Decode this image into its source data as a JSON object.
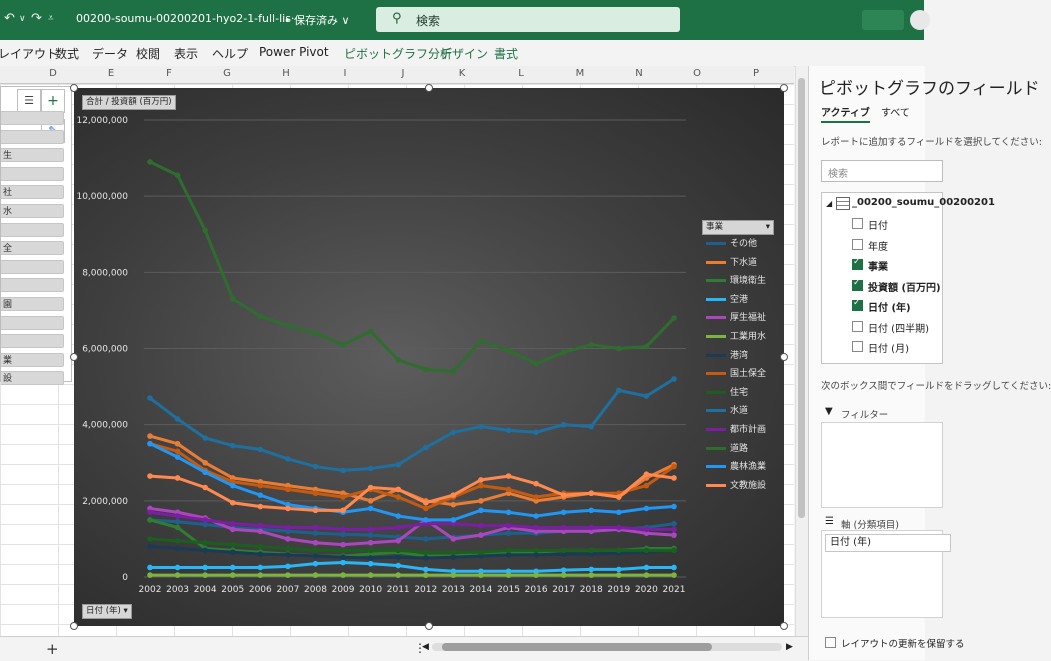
{
  "titlebar": {
    "doc_title": "00200-soumu-00200201-hyo2-1-full-lis···",
    "saved": "• 保存済み ∨",
    "search_placeholder": "検索"
  },
  "ribbon": {
    "tabs": [
      "レイアウト",
      "数式",
      "データ",
      "校閲",
      "表示",
      "ヘルプ",
      "Power Pivot"
    ],
    "context_tabs": [
      "ピボットグラフ分析",
      "デザイン",
      "書式"
    ]
  },
  "columns": [
    "D",
    "E",
    "F",
    "G",
    "H",
    "I",
    "J",
    "K",
    "L",
    "M",
    "N",
    "O",
    "P"
  ],
  "slicer": {
    "items": [
      "",
      "",
      "生",
      "",
      "社",
      "水",
      "",
      "全",
      "",
      "",
      "園",
      "",
      "",
      "業",
      "設"
    ]
  },
  "chart_data": {
    "type": "line",
    "value_field_button": "合計 / 投資額 (百万円)",
    "axis_field_button": "日付 (年)",
    "legend_title": "事業",
    "x": [
      "2002",
      "2003",
      "2004",
      "2005",
      "2006",
      "2007",
      "2008",
      "2009",
      "2010",
      "2011",
      "2012",
      "2013",
      "2014",
      "2015",
      "2016",
      "2017",
      "2018",
      "2019",
      "2020",
      "2021"
    ],
    "ylim": [
      0,
      12000000
    ],
    "yticks": [
      "0",
      "2,000,000",
      "4,000,000",
      "6,000,000",
      "8,000,000",
      "10,000,000",
      "12,000,000"
    ],
    "legend_position": "right",
    "grid": true,
    "series": [
      {
        "name": "その他",
        "color": "#1f5f8b",
        "values": [
          1500000,
          1450000,
          1380000,
          1300000,
          1250000,
          1200000,
          1150000,
          1120000,
          1100000,
          1050000,
          1000000,
          1050000,
          1100000,
          1150000,
          1150000,
          1200000,
          1200000,
          1250000,
          1300000,
          1400000
        ]
      },
      {
        "name": "下水道",
        "color": "#e97d35",
        "values": [
          3700000,
          3500000,
          3000000,
          2600000,
          2500000,
          2400000,
          2300000,
          2200000,
          2000000,
          2300000,
          2000000,
          1900000,
          2000000,
          2200000,
          2000000,
          2100000,
          2200000,
          2100000,
          2600000,
          2950000
        ]
      },
      {
        "name": "環境衛生",
        "color": "#2e7d32",
        "values": [
          1500000,
          1300000,
          750000,
          700000,
          650000,
          600000,
          550000,
          550000,
          600000,
          650000,
          550000,
          550000,
          600000,
          650000,
          650000,
          700000,
          700000,
          700000,
          750000,
          750000
        ]
      },
      {
        "name": "空港",
        "color": "#29b6f6",
        "values": [
          250000,
          250000,
          250000,
          250000,
          250000,
          280000,
          350000,
          380000,
          350000,
          300000,
          200000,
          150000,
          150000,
          150000,
          150000,
          180000,
          200000,
          200000,
          250000,
          250000
        ]
      },
      {
        "name": "厚生福祉",
        "color": "#ab47bc",
        "values": [
          1800000,
          1700000,
          1550000,
          1250000,
          1200000,
          1000000,
          900000,
          850000,
          900000,
          950000,
          1500000,
          1000000,
          1100000,
          1300000,
          1200000,
          1200000,
          1200000,
          1250000,
          1150000,
          1100000
        ]
      },
      {
        "name": "工業用水",
        "color": "#7cb342",
        "values": [
          50000,
          50000,
          50000,
          50000,
          50000,
          50000,
          50000,
          50000,
          50000,
          50000,
          50000,
          50000,
          50000,
          50000,
          50000,
          50000,
          50000,
          50000,
          50000,
          50000
        ]
      },
      {
        "name": "港湾",
        "color": "#1a3a55",
        "values": [
          800000,
          750000,
          700000,
          650000,
          600000,
          580000,
          550000,
          520000,
          500000,
          520000,
          500000,
          520000,
          550000,
          580000,
          580000,
          600000,
          600000,
          620000,
          650000,
          700000
        ]
      },
      {
        "name": "国土保全",
        "color": "#c55a11",
        "values": [
          3500000,
          3300000,
          2800000,
          2500000,
          2400000,
          2300000,
          2200000,
          2100000,
          2300000,
          2100000,
          1800000,
          2100000,
          2400000,
          2300000,
          2100000,
          2200000,
          2200000,
          2200000,
          2400000,
          2900000
        ]
      },
      {
        "name": "住宅",
        "color": "#1b5e20",
        "values": [
          1000000,
          950000,
          900000,
          850000,
          800000,
          750000,
          700000,
          700000,
          700000,
          700000,
          650000,
          650000,
          650000,
          700000,
          700000,
          700000,
          700000,
          700000,
          700000,
          700000
        ]
      },
      {
        "name": "水道",
        "color": "#1f6f9f",
        "values": [
          4700000,
          4150000,
          3650000,
          3450000,
          3350000,
          3100000,
          2900000,
          2800000,
          2850000,
          2950000,
          3400000,
          3800000,
          3950000,
          3850000,
          3800000,
          4000000,
          3950000,
          4900000,
          4750000,
          5200000
        ]
      },
      {
        "name": "都市計画",
        "color": "#7b1fa2",
        "values": [
          1700000,
          1600000,
          1500000,
          1400000,
          1350000,
          1300000,
          1300000,
          1250000,
          1250000,
          1300000,
          1400000,
          1400000,
          1350000,
          1350000,
          1300000,
          1300000,
          1300000,
          1300000,
          1250000,
          1250000
        ]
      },
      {
        "name": "道路",
        "color": "#2f6d2f",
        "values": [
          10900000,
          10550000,
          9100000,
          7300000,
          6850000,
          6600000,
          6400000,
          6100000,
          6450000,
          5700000,
          5450000,
          5400000,
          6200000,
          5950000,
          5600000,
          5900000,
          6100000,
          6000000,
          6050000,
          6800000
        ]
      },
      {
        "name": "農林漁業",
        "color": "#2196f3",
        "values": [
          3500000,
          3150000,
          2750000,
          2400000,
          2150000,
          1900000,
          1800000,
          1700000,
          1800000,
          1600000,
          1500000,
          1500000,
          1750000,
          1700000,
          1600000,
          1700000,
          1750000,
          1700000,
          1800000,
          1850000
        ]
      },
      {
        "name": "文教施設",
        "color": "#ff8a50",
        "values": [
          2650000,
          2600000,
          2350000,
          1950000,
          1850000,
          1800000,
          1750000,
          1750000,
          2350000,
          2300000,
          1950000,
          2150000,
          2550000,
          2650000,
          2450000,
          2150000,
          2200000,
          2100000,
          2700000,
          2600000
        ]
      }
    ]
  },
  "pane": {
    "title": "ピボットグラフのフィールド",
    "tab_active": "アクティブ",
    "tab_all": "すべて",
    "add_fields_label": "レポートに追加するフィールドを選択してください:",
    "search_placeholder": "検索",
    "table_name": "_00200_soumu_00200201",
    "fields": [
      {
        "label": "日付",
        "checked": false
      },
      {
        "label": "年度",
        "checked": false
      },
      {
        "label": "事業",
        "checked": true
      },
      {
        "label": "投資額 (百万円)",
        "checked": true
      },
      {
        "label": "日付 (年)",
        "checked": true
      },
      {
        "label": "日付 (四半期)",
        "checked": false
      },
      {
        "label": "日付 (月)",
        "checked": false
      }
    ],
    "drag_label": "次のボックス間でフィールドをドラッグしてください:",
    "filter_label": "フィルター",
    "axis_label": "軸 (分類項目)",
    "axis_item": "日付 (年)",
    "defer_label": "レイアウトの更新を保留する"
  }
}
